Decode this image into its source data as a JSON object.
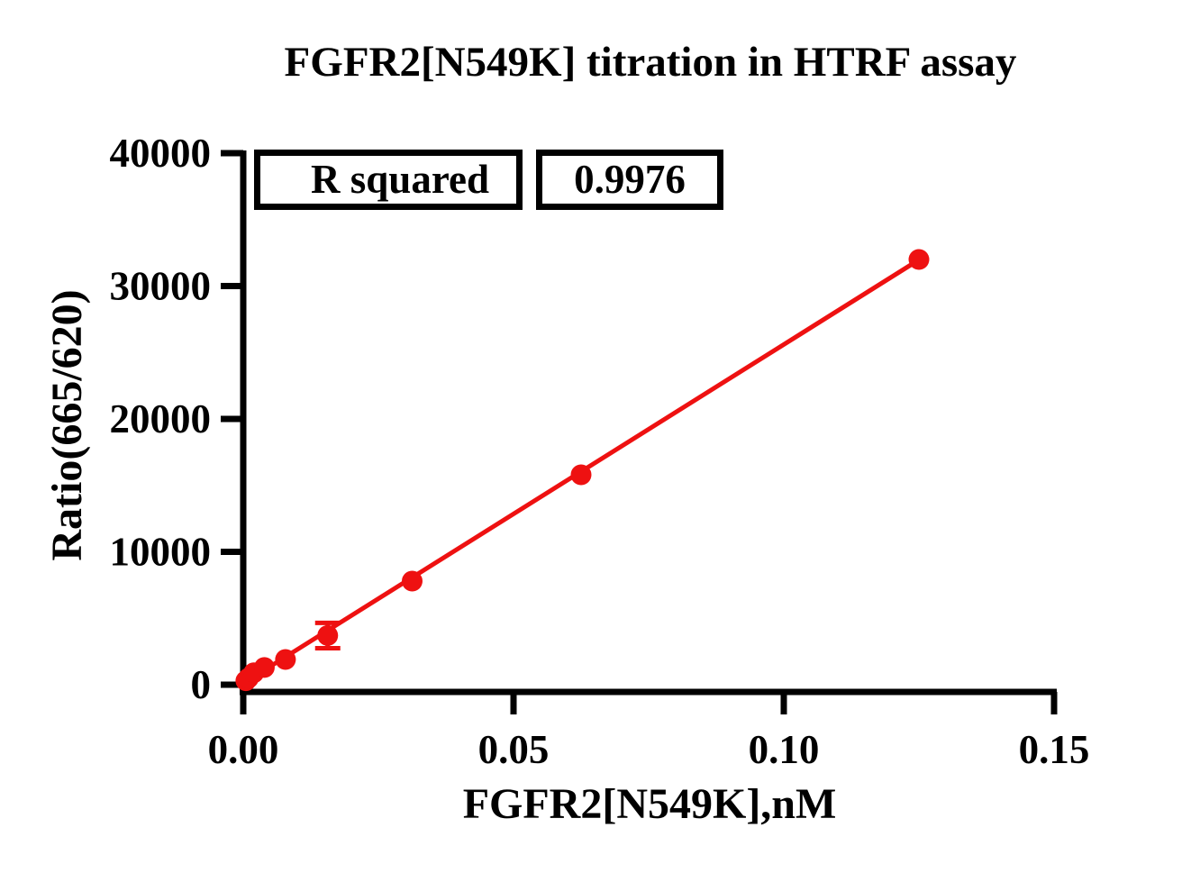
{
  "title": "FGFR2[N549K] titration in HTRF assay",
  "stats_table": {
    "rows": [
      {
        "label": "R squared",
        "value": "0.9976"
      }
    ]
  },
  "colors": {
    "series_red": "#ee1111",
    "axis": "#000000",
    "background": "#ffffff"
  },
  "chart_data": {
    "type": "scatter",
    "title": "FGFR2[N549K] titration in HTRF assay",
    "xlabel": "FGFR2[N549K],nM",
    "ylabel": "Ratio(665/620)",
    "xlim": [
      0,
      0.15
    ],
    "ylim": [
      0,
      40000
    ],
    "x_ticks": [
      0.0,
      0.05,
      0.1,
      0.15
    ],
    "x_tick_labels": [
      "0.00",
      "0.05",
      "0.10",
      "0.15"
    ],
    "y_ticks": [
      0,
      10000,
      20000,
      30000,
      40000
    ],
    "y_tick_labels": [
      "0",
      "10000",
      "20000",
      "30000",
      "40000"
    ],
    "grid": false,
    "legend": null,
    "series": [
      {
        "name": "FGFR2[N549K]",
        "marker": "circle",
        "color": "#ee1111",
        "points": [
          {
            "x": 0.000488,
            "y": 300
          },
          {
            "x": 0.000977,
            "y": 500
          },
          {
            "x": 0.001953,
            "y": 900
          },
          {
            "x": 0.003906,
            "y": 1300
          },
          {
            "x": 0.007813,
            "y": 1900
          },
          {
            "x": 0.015625,
            "y": 3700,
            "sd": 950
          },
          {
            "x": 0.03125,
            "y": 7800
          },
          {
            "x": 0.0625,
            "y": 15800
          },
          {
            "x": 0.125,
            "y": 32000
          }
        ]
      }
    ],
    "fit": {
      "type": "linear",
      "slope": 255000,
      "intercept": 100,
      "r_squared": 0.9976,
      "x_start": 0.000488,
      "x_end": 0.125
    }
  }
}
